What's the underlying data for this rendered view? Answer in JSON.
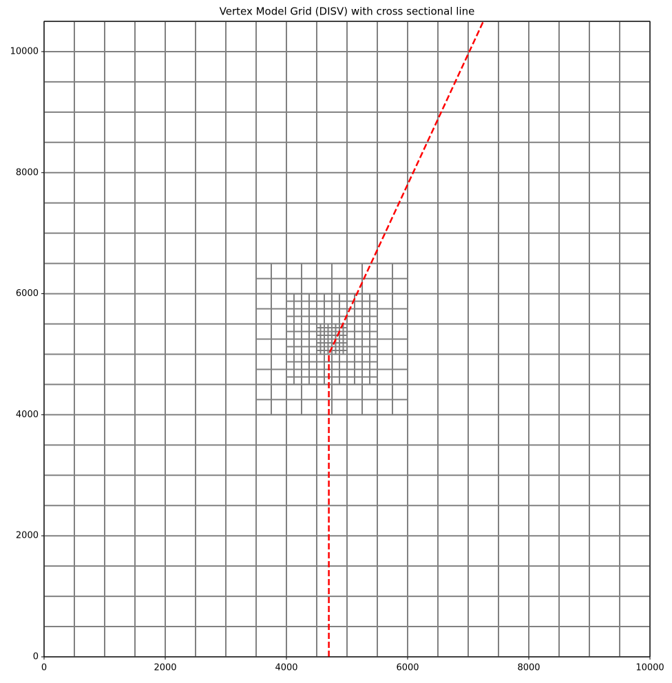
{
  "chart_data": {
    "type": "line",
    "title": "Vertex Model Grid (DISV) with cross sectional line",
    "x": [
      4700,
      4700,
      7250
    ],
    "values": [
      0,
      5000,
      10500
    ],
    "color": "#ff0000",
    "linestyle": "dashed",
    "xlim": [
      0,
      10000
    ],
    "ylim": [
      0,
      10500
    ],
    "xticks": [
      0,
      2000,
      4000,
      6000,
      8000,
      10000
    ],
    "yticks": [
      0,
      2000,
      4000,
      6000,
      8000,
      10000
    ],
    "grid_color": "#808080",
    "model_grid": [
      {
        "xlim": [
          0,
          10000
        ],
        "ylim": [
          0,
          10500
        ],
        "spacing": 500
      },
      {
        "xlim": [
          3500,
          6000
        ],
        "ylim": [
          4000,
          6500
        ],
        "spacing": 250
      },
      {
        "xlim": [
          4000,
          5500
        ],
        "ylim": [
          4500,
          6000
        ],
        "spacing": 125
      },
      {
        "xlim": [
          4500,
          5000
        ],
        "ylim": [
          5000,
          5500
        ],
        "spacing": 62.5
      }
    ]
  }
}
